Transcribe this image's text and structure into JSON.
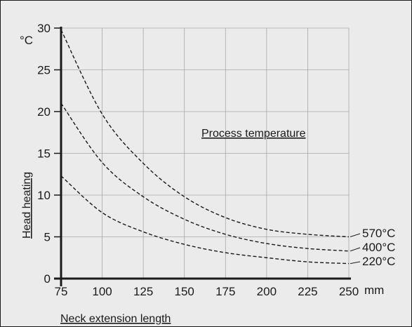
{
  "chart_data": {
    "type": "line",
    "title": "Process temperature",
    "xlabel": "Neck extension length",
    "ylabel": "Head heating",
    "x_unit": "mm",
    "y_unit": "°C",
    "xlim": [
      75,
      250
    ],
    "ylim": [
      0,
      30
    ],
    "x_ticks": [
      75,
      100,
      125,
      150,
      175,
      200,
      225,
      250
    ],
    "y_ticks": [
      0,
      5,
      10,
      15,
      20,
      25,
      30
    ],
    "grid": true,
    "line_style": "dashed",
    "x": [
      75,
      100,
      125,
      150,
      175,
      200,
      225,
      250
    ],
    "series": [
      {
        "name": "570°C",
        "values": [
          29.8,
          19.7,
          13.8,
          9.8,
          7.3,
          5.9,
          5.3,
          5.0
        ]
      },
      {
        "name": "400°C",
        "values": [
          21.0,
          13.9,
          9.8,
          7.1,
          5.3,
          4.2,
          3.6,
          3.3
        ]
      },
      {
        "name": "220°C",
        "values": [
          12.3,
          7.9,
          5.6,
          4.1,
          3.1,
          2.5,
          2.0,
          1.8
        ]
      }
    ]
  }
}
